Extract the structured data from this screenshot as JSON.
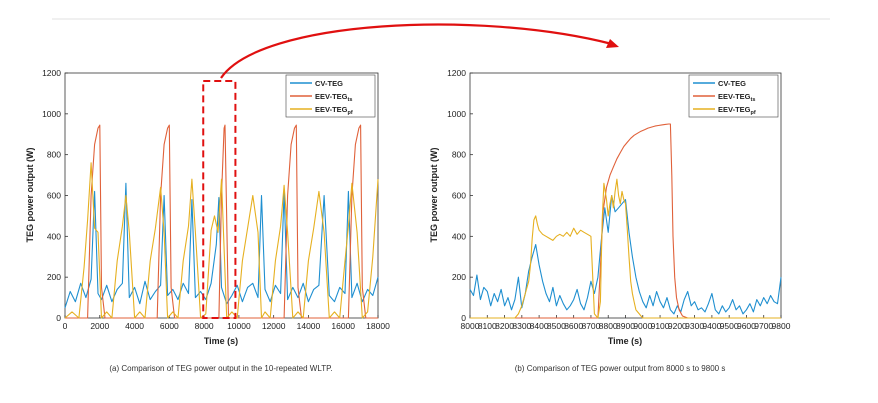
{
  "colors": {
    "cv": "#1f8fd0",
    "ts": "#e0613a",
    "pf": "#e6b020",
    "accent_red": "#e01010",
    "divider": "#e2e2e2"
  },
  "legend": {
    "cv": "CV-TEG",
    "ts_main": "EEV-TEG",
    "ts_sub": "ts",
    "pf_main": "EEV-TEG",
    "pf_sub": "pf"
  },
  "caption_a": "(a) Comparison of TEG power output in the 10-repeated WLTP.",
  "caption_b": "(b) Comparison of TEG power output from 8000 s to 9800 s",
  "chart_data": [
    {
      "type": "line",
      "id": "a",
      "xlabel": "Time (s)",
      "ylabel": "TEG power output (W)",
      "xlim": [
        0,
        18000
      ],
      "ylim": [
        0,
        1200
      ],
      "xticks": [
        0,
        2000,
        4000,
        6000,
        8000,
        10000,
        12000,
        14000,
        16000,
        18000
      ],
      "yticks": [
        0,
        200,
        400,
        600,
        800,
        1000,
        1200
      ],
      "highlight_range": [
        7950,
        9800
      ],
      "legend_position": "top-right",
      "series": [
        {
          "name": "CV-TEG",
          "x": [
            0,
            300,
            600,
            900,
            1200,
            1500,
            1700,
            1900,
            2100,
            2400,
            2700,
            3000,
            3300,
            3500,
            3700,
            4000,
            4300,
            4600,
            4900,
            5200,
            5500,
            5700,
            5900,
            6200,
            6500,
            6800,
            7100,
            7300,
            7500,
            7800,
            8100,
            8400,
            8700,
            8850,
            9000,
            9300,
            9600,
            9900,
            10200,
            10500,
            10800,
            11100,
            11300,
            11500,
            11800,
            12100,
            12400,
            12600,
            12800,
            13100,
            13400,
            13700,
            14000,
            14300,
            14600,
            14900,
            15200,
            15500,
            15800,
            16100,
            16300,
            16500,
            16800,
            17100,
            17400,
            17700,
            18000
          ],
          "values": [
            50,
            130,
            80,
            170,
            100,
            190,
            620,
            120,
            90,
            160,
            80,
            140,
            170,
            660,
            100,
            150,
            70,
            180,
            90,
            130,
            160,
            600,
            110,
            140,
            90,
            170,
            120,
            580,
            100,
            130,
            90,
            170,
            360,
            590,
            150,
            70,
            110,
            160,
            80,
            150,
            170,
            100,
            600,
            140,
            80,
            160,
            120,
            620,
            90,
            150,
            100,
            170,
            80,
            140,
            160,
            600,
            110,
            80,
            150,
            120,
            620,
            100,
            170,
            80,
            140,
            110,
            200
          ]
        },
        {
          "name": "EEV-TEG ts",
          "x": [
            0,
            1000,
            1300,
            1500,
            1700,
            1900,
            2000,
            2100,
            2300,
            5000,
            5300,
            5500,
            5700,
            5900,
            6000,
            6100,
            6300,
            8700,
            8850,
            9000,
            9150,
            9200,
            9400,
            12300,
            12600,
            12800,
            13000,
            13200,
            13300,
            13400,
            13600,
            16000,
            16300,
            16500,
            16700,
            16900,
            17000,
            17100,
            17300,
            18000
          ],
          "values": [
            0,
            0,
            0,
            600,
            850,
            930,
            945,
            150,
            0,
            0,
            0,
            600,
            850,
            930,
            945,
            150,
            0,
            0,
            0,
            600,
            930,
            945,
            0,
            0,
            0,
            600,
            850,
            930,
            945,
            150,
            0,
            0,
            0,
            600,
            850,
            930,
            945,
            150,
            0,
            0
          ]
        },
        {
          "name": "EEV-TEG pf",
          "x": [
            0,
            400,
            800,
            1100,
            1300,
            1500,
            1700,
            1900,
            2100,
            2400,
            2700,
            3000,
            3300,
            3500,
            3700,
            4000,
            4300,
            4600,
            4900,
            5200,
            5500,
            5700,
            5900,
            6200,
            6500,
            6800,
            7100,
            7300,
            7500,
            7800,
            8100,
            8400,
            8600,
            8800,
            9000,
            9300,
            9600,
            9900,
            10200,
            10500,
            10800,
            11100,
            11300,
            11500,
            11800,
            12100,
            12400,
            12600,
            12800,
            13100,
            13400,
            13700,
            14000,
            14300,
            14600,
            14900,
            15200,
            15500,
            15800,
            16100,
            16300,
            16500,
            16800,
            17100,
            17400,
            17700,
            18000
          ],
          "values": [
            0,
            30,
            0,
            250,
            480,
            760,
            440,
            420,
            0,
            30,
            0,
            280,
            450,
            600,
            420,
            0,
            30,
            0,
            280,
            440,
            640,
            420,
            0,
            30,
            0,
            280,
            450,
            680,
            420,
            0,
            20,
            430,
            500,
            420,
            680,
            0,
            30,
            0,
            280,
            440,
            600,
            420,
            0,
            30,
            0,
            280,
            450,
            650,
            420,
            0,
            30,
            0,
            280,
            440,
            620,
            420,
            0,
            30,
            0,
            280,
            450,
            660,
            420,
            0,
            30,
            300,
            680
          ]
        }
      ]
    },
    {
      "type": "line",
      "id": "b",
      "xlabel": "Time (s)",
      "ylabel": "TEG power output (W)",
      "xlim": [
        8000,
        9800
      ],
      "ylim": [
        0,
        1200
      ],
      "xticks": [
        8000,
        8100,
        8200,
        8300,
        8400,
        8500,
        8600,
        8700,
        8800,
        8900,
        9000,
        9100,
        9200,
        9300,
        9400,
        9500,
        9600,
        9700,
        9800
      ],
      "yticks": [
        0,
        200,
        400,
        600,
        800,
        1000,
        1200
      ],
      "legend_position": "top-right",
      "series": [
        {
          "name": "CV-TEG",
          "x": [
            8000,
            8020,
            8040,
            8060,
            8080,
            8100,
            8120,
            8140,
            8160,
            8180,
            8200,
            8220,
            8240,
            8260,
            8280,
            8300,
            8320,
            8340,
            8360,
            8380,
            8400,
            8420,
            8440,
            8460,
            8480,
            8500,
            8520,
            8540,
            8560,
            8580,
            8600,
            8620,
            8640,
            8660,
            8680,
            8700,
            8720,
            8740,
            8760,
            8780,
            8800,
            8820,
            8840,
            8860,
            8880,
            8900,
            8920,
            8940,
            8960,
            8980,
            9000,
            9020,
            9040,
            9060,
            9080,
            9100,
            9120,
            9140,
            9160,
            9180,
            9200,
            9220,
            9240,
            9260,
            9280,
            9300,
            9320,
            9340,
            9360,
            9380,
            9400,
            9420,
            9440,
            9460,
            9480,
            9500,
            9520,
            9540,
            9560,
            9580,
            9600,
            9620,
            9640,
            9660,
            9680,
            9700,
            9720,
            9740,
            9760,
            9780,
            9800
          ],
          "values": [
            140,
            110,
            210,
            90,
            150,
            130,
            60,
            120,
            80,
            140,
            60,
            100,
            40,
            90,
            200,
            50,
            120,
            230,
            300,
            360,
            260,
            180,
            120,
            80,
            150,
            60,
            110,
            70,
            40,
            60,
            90,
            140,
            70,
            40,
            100,
            180,
            120,
            200,
            380,
            540,
            420,
            600,
            520,
            540,
            560,
            580,
            420,
            300,
            200,
            130,
            80,
            50,
            110,
            60,
            130,
            80,
            50,
            100,
            40,
            20,
            60,
            30,
            90,
            130,
            60,
            80,
            40,
            50,
            30,
            70,
            120,
            40,
            20,
            60,
            30,
            50,
            90,
            40,
            60,
            20,
            40,
            70,
            30,
            90,
            60,
            100,
            70,
            110,
            80,
            70,
            200
          ]
        },
        {
          "name": "EEV-TEG ts",
          "x": [
            8000,
            8740,
            8755,
            8770,
            8790,
            8810,
            8830,
            8850,
            8870,
            8890,
            8910,
            8930,
            8950,
            8970,
            8990,
            9010,
            9030,
            9050,
            9070,
            9090,
            9110,
            9130,
            9150,
            9160,
            9168,
            9175,
            9185,
            9195,
            9210,
            9230,
            9260,
            9800
          ],
          "values": [
            0,
            0,
            250,
            520,
            640,
            700,
            740,
            780,
            810,
            840,
            860,
            880,
            895,
            905,
            915,
            922,
            930,
            935,
            940,
            943,
            946,
            948,
            950,
            950,
            700,
            400,
            200,
            100,
            40,
            10,
            0,
            0
          ]
        },
        {
          "name": "EEV-TEG pf",
          "x": [
            8000,
            8260,
            8280,
            8300,
            8320,
            8340,
            8350,
            8360,
            8370,
            8380,
            8390,
            8400,
            8420,
            8440,
            8460,
            8480,
            8500,
            8520,
            8540,
            8560,
            8580,
            8600,
            8620,
            8640,
            8660,
            8680,
            8700,
            8720,
            8740,
            8755,
            8765,
            8775,
            8790,
            8800,
            8810,
            8820,
            8830,
            8840,
            8850,
            8860,
            8870,
            8880,
            8890,
            8900,
            8910,
            8920,
            8930,
            8940,
            8950,
            8960,
            8970,
            8980,
            8990,
            9000,
            9020,
            9040,
            9800
          ],
          "values": [
            0,
            0,
            20,
            60,
            120,
            180,
            260,
            390,
            480,
            500,
            460,
            430,
            410,
            400,
            390,
            380,
            400,
            410,
            400,
            420,
            400,
            440,
            410,
            430,
            420,
            410,
            400,
            20,
            0,
            80,
            480,
            660,
            580,
            500,
            560,
            600,
            540,
            620,
            680,
            600,
            560,
            620,
            580,
            560,
            440,
            300,
            180,
            120,
            80,
            40,
            30,
            20,
            10,
            0,
            0,
            0,
            0
          ]
        }
      ]
    }
  ]
}
